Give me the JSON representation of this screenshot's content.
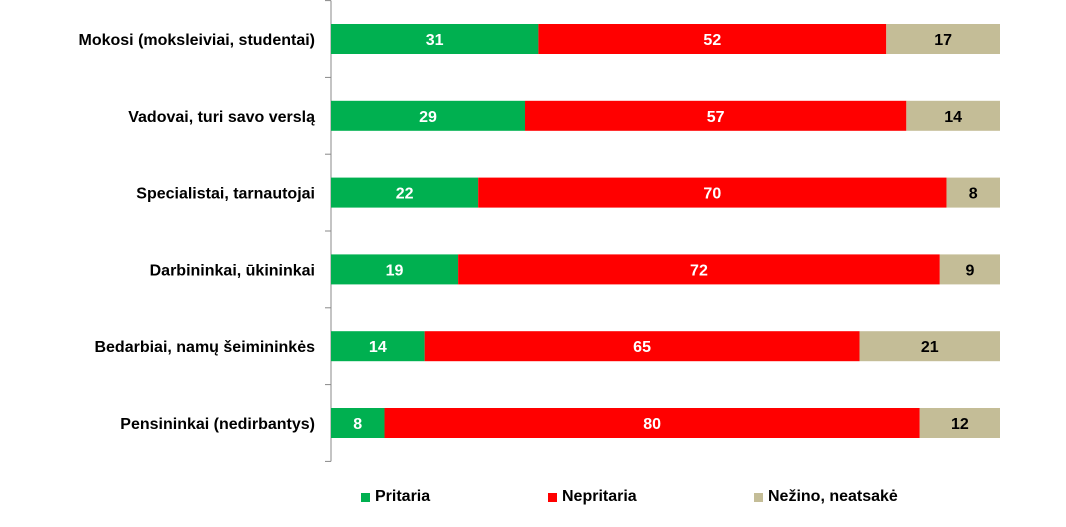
{
  "chart_data": {
    "type": "bar",
    "orientation": "horizontal",
    "stacked": true,
    "percent_stacked": true,
    "categories": [
      "Mokosi (moksleiviai, studentai)",
      "Vadovai, turi savo verslą",
      "Specialistai, tarnautojai",
      "Darbininkai, ūkininkai",
      "Bedarbiai, namų šeimininkės",
      "Pensininkai (nedirbantys)"
    ],
    "series": [
      {
        "name": "Pritaria",
        "color": "#00B050",
        "label_color": "#FFFFFF",
        "values": [
          31,
          29,
          22,
          19,
          14,
          8
        ]
      },
      {
        "name": "Nepritaria",
        "color": "#FF0000",
        "label_color": "#FFFFFF",
        "values": [
          52,
          57,
          70,
          72,
          65,
          80
        ]
      },
      {
        "name": "Nežino, neatsakė",
        "color": "#C4BD97",
        "label_color": "#000000",
        "values": [
          17,
          14,
          8,
          9,
          21,
          12
        ]
      }
    ],
    "xlim": [
      0,
      100
    ],
    "grid": false,
    "legend_position": "bottom",
    "data_labels": true
  }
}
